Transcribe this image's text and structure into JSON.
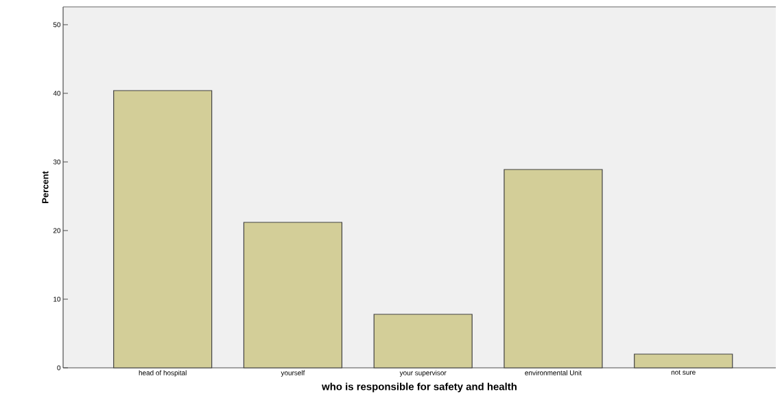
{
  "chart_data": {
    "type": "bar",
    "xlabel": "who is responsible for safety and health",
    "ylabel": "Percent",
    "categories": [
      "head of hospital",
      "yourself",
      "your supervisor",
      "environmental Unit",
      "not sure"
    ],
    "values": [
      40.4,
      21.2,
      7.8,
      28.9,
      2.0
    ],
    "color": "#d3ce98",
    "ylim": [
      0,
      52.6
    ],
    "yticks": [
      0,
      10,
      20,
      30,
      40,
      50
    ],
    "grid": false
  }
}
